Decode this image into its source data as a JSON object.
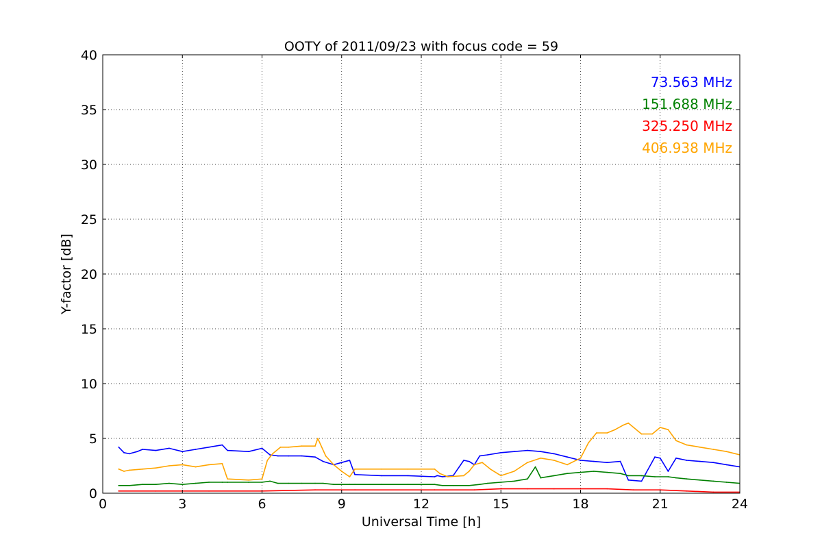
{
  "chart_data": {
    "type": "line",
    "title": "OOTY of 2011/09/23 with focus code = 59",
    "xlabel": "Universal Time [h]",
    "ylabel": "Y-factor [dB]",
    "xlim": [
      0,
      24
    ],
    "ylim": [
      0,
      40
    ],
    "xticks": [
      0,
      3,
      6,
      9,
      12,
      15,
      18,
      21,
      24
    ],
    "yticks": [
      0,
      5,
      10,
      15,
      20,
      25,
      30,
      35,
      40
    ],
    "grid": true,
    "legend": "top-right",
    "series": [
      {
        "name": "73.563 MHz",
        "color": "#0000ff",
        "x": [
          0.6,
          0.8,
          1.0,
          1.3,
          1.5,
          2.0,
          2.5,
          3.0,
          3.5,
          4.0,
          4.5,
          4.7,
          5.5,
          6.0,
          6.3,
          6.6,
          7.0,
          7.5,
          8.0,
          8.3,
          8.7,
          9.0,
          9.3,
          9.5,
          10.5,
          11.5,
          12.5,
          12.6,
          12.8,
          13.2,
          13.6,
          13.8,
          14.0,
          14.2,
          14.5,
          15.0,
          15.5,
          16.0,
          16.5,
          17.0,
          17.5,
          18.0,
          18.5,
          19.0,
          19.5,
          19.8,
          20.3,
          20.8,
          21.0,
          21.3,
          21.6,
          22.0,
          22.5,
          23.0,
          23.5,
          24.0
        ],
        "values": [
          4.2,
          3.7,
          3.6,
          3.8,
          4.0,
          3.9,
          4.1,
          3.8,
          4.0,
          4.2,
          4.4,
          3.9,
          3.8,
          4.1,
          3.5,
          3.4,
          3.4,
          3.4,
          3.3,
          2.9,
          2.6,
          2.8,
          3.0,
          1.7,
          1.6,
          1.6,
          1.5,
          1.6,
          1.5,
          1.6,
          3.0,
          2.9,
          2.6,
          3.4,
          3.5,
          3.7,
          3.8,
          3.9,
          3.8,
          3.6,
          3.3,
          3.0,
          2.9,
          2.8,
          2.9,
          1.2,
          1.1,
          3.3,
          3.2,
          2.0,
          3.2,
          3.0,
          2.9,
          2.8,
          2.6,
          2.4
        ]
      },
      {
        "name": "151.688 MHz",
        "color": "#008000",
        "x": [
          0.6,
          1.0,
          1.5,
          2.0,
          2.5,
          3.0,
          3.5,
          4.0,
          4.5,
          4.7,
          5.5,
          6.0,
          6.3,
          6.6,
          7.0,
          7.5,
          8.0,
          8.3,
          8.7,
          9.0,
          9.3,
          9.5,
          10.5,
          11.5,
          12.5,
          12.8,
          13.2,
          13.8,
          14.2,
          14.5,
          15.0,
          15.5,
          16.0,
          16.3,
          16.5,
          17.0,
          17.5,
          18.0,
          18.5,
          19.0,
          19.5,
          19.8,
          20.3,
          20.8,
          21.3,
          21.6,
          22.0,
          22.5,
          23.0,
          23.5,
          24.0
        ],
        "values": [
          0.7,
          0.7,
          0.8,
          0.8,
          0.9,
          0.8,
          0.9,
          1.0,
          1.0,
          1.0,
          1.0,
          1.0,
          1.1,
          0.9,
          0.9,
          0.9,
          0.9,
          0.9,
          0.8,
          0.8,
          0.8,
          0.8,
          0.8,
          0.8,
          0.8,
          0.7,
          0.7,
          0.7,
          0.8,
          0.9,
          1.0,
          1.1,
          1.3,
          2.4,
          1.4,
          1.6,
          1.8,
          1.9,
          2.0,
          1.9,
          1.8,
          1.6,
          1.6,
          1.5,
          1.5,
          1.4,
          1.3,
          1.2,
          1.1,
          1.0,
          0.9
        ]
      },
      {
        "name": "325.250 MHz",
        "color": "#ff0000",
        "x": [
          0.6,
          2.0,
          4.0,
          6.0,
          8.0,
          9.5,
          12.5,
          14.0,
          15.0,
          16.0,
          17.0,
          18.0,
          19.0,
          20.0,
          21.0,
          22.0,
          23.0,
          24.0
        ],
        "values": [
          0.2,
          0.2,
          0.2,
          0.2,
          0.3,
          0.3,
          0.3,
          0.3,
          0.4,
          0.4,
          0.4,
          0.4,
          0.4,
          0.3,
          0.3,
          0.2,
          0.1,
          0.1
        ]
      },
      {
        "name": "406.938 MHz",
        "color": "#ffa500",
        "x": [
          0.6,
          0.8,
          1.0,
          1.5,
          2.0,
          2.5,
          3.0,
          3.5,
          4.0,
          4.5,
          4.7,
          5.5,
          6.0,
          6.2,
          6.4,
          6.7,
          7.0,
          7.5,
          8.0,
          8.1,
          8.4,
          8.7,
          9.0,
          9.3,
          9.5,
          10.5,
          11.5,
          12.5,
          12.7,
          13.0,
          13.6,
          13.8,
          14.0,
          14.3,
          14.6,
          15.0,
          15.5,
          16.0,
          16.5,
          17.0,
          17.5,
          18.0,
          18.3,
          18.6,
          19.0,
          19.3,
          19.6,
          19.8,
          20.3,
          20.7,
          21.0,
          21.3,
          21.6,
          22.0,
          22.5,
          23.0,
          23.5,
          24.0
        ],
        "values": [
          2.2,
          2.0,
          2.1,
          2.2,
          2.3,
          2.5,
          2.6,
          2.4,
          2.6,
          2.7,
          1.3,
          1.2,
          1.3,
          3.0,
          3.6,
          4.2,
          4.2,
          4.3,
          4.3,
          5.0,
          3.4,
          2.6,
          2.0,
          1.5,
          2.2,
          2.2,
          2.2,
          2.2,
          1.8,
          1.5,
          1.6,
          2.0,
          2.6,
          2.8,
          2.2,
          1.6,
          2.0,
          2.8,
          3.2,
          3.0,
          2.6,
          3.2,
          4.6,
          5.5,
          5.5,
          5.8,
          6.2,
          6.4,
          5.4,
          5.4,
          6.0,
          5.8,
          4.8,
          4.4,
          4.2,
          4.0,
          3.8,
          3.5
        ]
      }
    ]
  }
}
